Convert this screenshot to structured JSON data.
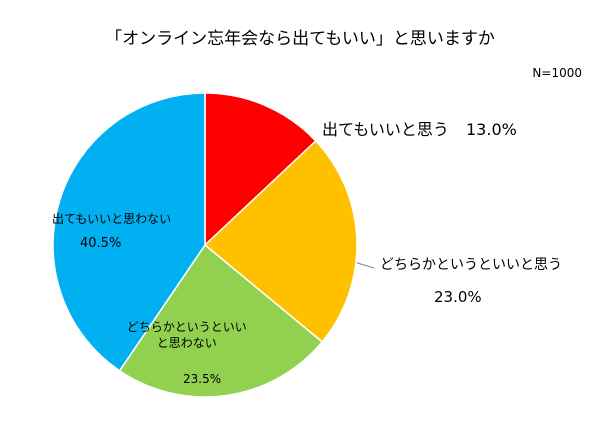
{
  "chart_data": {
    "type": "pie",
    "title": "「オンライン忘年会なら出てもいい」と思いますか",
    "note": "N=1000",
    "categories": [
      "出てもいいと思う",
      "どちらかというといいと思う",
      "どちらかというといいと思わない",
      "出てもいいと思わない"
    ],
    "values": [
      13.0,
      23.0,
      23.5,
      40.5
    ],
    "value_labels": [
      "13.0%",
      "23.0%",
      "23.5%",
      "40.5%"
    ],
    "colors": [
      "#ff0000",
      "#ffc000",
      "#92d050",
      "#00b0f0"
    ]
  }
}
